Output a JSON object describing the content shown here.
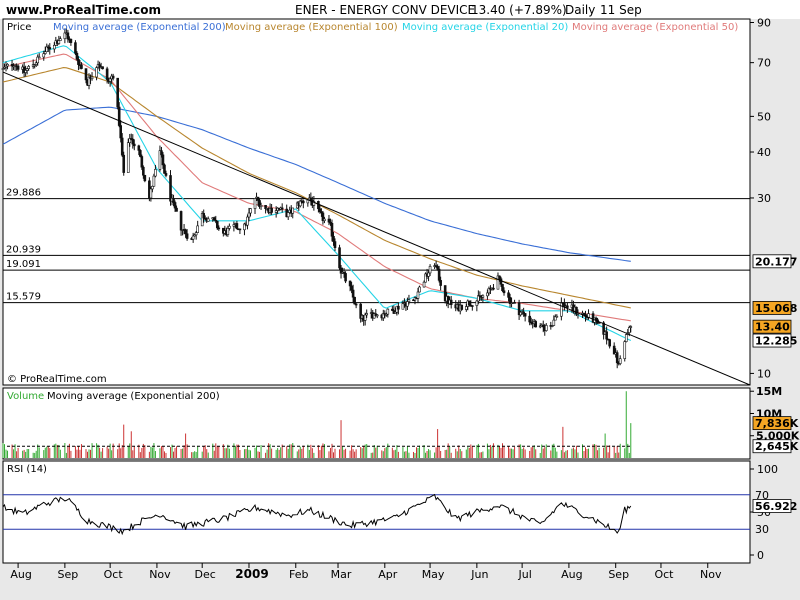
{
  "header": {
    "site": "www.ProRealTime.com",
    "ticker": "ENER - ENERGY CONV DEVICE",
    "quote": "13.40 (+7.89%)",
    "period": "Daily",
    "date": "11 Sep"
  },
  "copyright": "© ProRealTime.com",
  "colors": {
    "price": "#111111",
    "ema200": "#3a6fd6",
    "ema100": "#b8862e",
    "ema20": "#24d4e6",
    "ema50": "#e07a7a",
    "volume_up": "#33aa33",
    "volume_down": "#cc3333",
    "rsi": "#000000",
    "rsi_band": "#2233aa",
    "frame": "#000000",
    "badge_orange": "#f5a623",
    "badge_white": "#ffffff"
  },
  "chart_data": [
    {
      "type": "line",
      "panel": "price",
      "scale": "log",
      "ylim": [
        9.3,
        92
      ],
      "y_ticks": [
        10,
        30,
        40,
        50,
        70,
        90
      ],
      "x_start": "2008-07-22",
      "x_end": "2009-11-29",
      "x_ticks": [
        {
          "date": "2008-08-01",
          "label": "Aug",
          "bold": false
        },
        {
          "date": "2008-09-01",
          "label": "Sep",
          "bold": false
        },
        {
          "date": "2008-10-01",
          "label": "Oct",
          "bold": false
        },
        {
          "date": "2008-11-01",
          "label": "Nov",
          "bold": false
        },
        {
          "date": "2008-12-01",
          "label": "Dec",
          "bold": false
        },
        {
          "date": "2009-01-01",
          "label": "2009",
          "bold": true
        },
        {
          "date": "2009-02-01",
          "label": "Feb",
          "bold": false
        },
        {
          "date": "2009-03-01",
          "label": "Mar",
          "bold": false
        },
        {
          "date": "2009-04-01",
          "label": "Apr",
          "bold": false
        },
        {
          "date": "2009-05-01",
          "label": "May",
          "bold": false
        },
        {
          "date": "2009-06-01",
          "label": "Jun",
          "bold": false
        },
        {
          "date": "2009-07-01",
          "label": "Jul",
          "bold": false
        },
        {
          "date": "2009-08-01",
          "label": "Aug",
          "bold": false
        },
        {
          "date": "2009-09-01",
          "label": "Sep",
          "bold": false
        },
        {
          "date": "2009-10-01",
          "label": "Oct",
          "bold": false
        },
        {
          "date": "2009-11-01",
          "label": "Nov",
          "bold": false
        }
      ],
      "legend": [
        {
          "label": "Price",
          "color": "#000000"
        },
        {
          "label": "Moving average (Exponential 200)",
          "color": "#3a6fd6"
        },
        {
          "label": "Moving average (Exponential 100)",
          "color": "#b8862e"
        },
        {
          "label": "Moving average (Exponential 20)",
          "color": "#24d4e6"
        },
        {
          "label": "Moving average (Exponential 50)",
          "color": "#e07a7a"
        }
      ],
      "horizontal_levels": [
        29.886,
        20.939,
        19.091,
        15.579
      ],
      "trendline": {
        "from": {
          "date": "2008-07-22",
          "value": 66
        },
        "to": {
          "date": "2009-11-29",
          "value": 9.3
        }
      },
      "price_anchors": [
        [
          "2008-07-22",
          67
        ],
        [
          "2008-07-29",
          70
        ],
        [
          "2008-08-05",
          66
        ],
        [
          "2008-08-12",
          70
        ],
        [
          "2008-08-19",
          75
        ],
        [
          "2008-08-26",
          80
        ],
        [
          "2008-09-02",
          84
        ],
        [
          "2008-09-09",
          72
        ],
        [
          "2008-09-16",
          62
        ],
        [
          "2008-09-23",
          70
        ],
        [
          "2008-09-30",
          62
        ],
        [
          "2008-10-03",
          65
        ],
        [
          "2008-10-07",
          48
        ],
        [
          "2008-10-10",
          35
        ],
        [
          "2008-10-14",
          44
        ],
        [
          "2008-10-20",
          40
        ],
        [
          "2008-10-27",
          30
        ],
        [
          "2008-11-03",
          40
        ],
        [
          "2008-11-10",
          30
        ],
        [
          "2008-11-17",
          25
        ],
        [
          "2008-11-24",
          23
        ],
        [
          "2008-12-01",
          27
        ],
        [
          "2008-12-08",
          26
        ],
        [
          "2008-12-15",
          24
        ],
        [
          "2008-12-22",
          25
        ],
        [
          "2008-12-29",
          25
        ],
        [
          "2009-01-05",
          30
        ],
        [
          "2009-01-12",
          28
        ],
        [
          "2009-01-20",
          28
        ],
        [
          "2009-01-27",
          27
        ],
        [
          "2009-02-03",
          29
        ],
        [
          "2009-02-10",
          30
        ],
        [
          "2009-02-17",
          27
        ],
        [
          "2009-02-24",
          25
        ],
        [
          "2009-03-03",
          19
        ],
        [
          "2009-03-09",
          17
        ],
        [
          "2009-03-16",
          14
        ],
        [
          "2009-03-23",
          14.5
        ],
        [
          "2009-03-30",
          14.5
        ],
        [
          "2009-04-06",
          14.8
        ],
        [
          "2009-04-13",
          15.5
        ],
        [
          "2009-04-20",
          15.8
        ],
        [
          "2009-04-27",
          18
        ],
        [
          "2009-05-04",
          20
        ],
        [
          "2009-05-11",
          16
        ],
        [
          "2009-05-18",
          15
        ],
        [
          "2009-05-25",
          15.5
        ],
        [
          "2009-06-01",
          15.8
        ],
        [
          "2009-06-08",
          16.5
        ],
        [
          "2009-06-15",
          18
        ],
        [
          "2009-06-22",
          16
        ],
        [
          "2009-06-29",
          14.8
        ],
        [
          "2009-07-06",
          14
        ],
        [
          "2009-07-13",
          13.2
        ],
        [
          "2009-07-20",
          13.5
        ],
        [
          "2009-07-27",
          15.5
        ],
        [
          "2009-08-03",
          15
        ],
        [
          "2009-08-10",
          14.5
        ],
        [
          "2009-08-17",
          14
        ],
        [
          "2009-08-24",
          13
        ],
        [
          "2009-08-31",
          11.5
        ],
        [
          "2009-09-03",
          10.5
        ],
        [
          "2009-09-07",
          12.4
        ],
        [
          "2009-09-11",
          13.4
        ]
      ],
      "ema_anchors": {
        "ema200": [
          [
            "2008-07-22",
            42
          ],
          [
            "2008-09-01",
            52
          ],
          [
            "2008-10-01",
            53
          ],
          [
            "2008-11-01",
            50
          ],
          [
            "2008-12-01",
            46
          ],
          [
            "2009-01-01",
            41
          ],
          [
            "2009-02-01",
            37
          ],
          [
            "2009-03-01",
            33
          ],
          [
            "2009-04-01",
            29
          ],
          [
            "2009-05-01",
            26
          ],
          [
            "2009-06-01",
            24
          ],
          [
            "2009-07-01",
            22.5
          ],
          [
            "2009-08-01",
            21.3
          ],
          [
            "2009-09-11",
            20.177
          ]
        ],
        "ema100": [
          [
            "2008-07-22",
            62
          ],
          [
            "2008-09-01",
            68
          ],
          [
            "2008-10-01",
            62
          ],
          [
            "2008-11-01",
            50
          ],
          [
            "2008-12-01",
            41
          ],
          [
            "2009-01-01",
            35
          ],
          [
            "2009-02-01",
            31
          ],
          [
            "2009-03-01",
            27
          ],
          [
            "2009-04-01",
            23
          ],
          [
            "2009-05-01",
            20.5
          ],
          [
            "2009-06-01",
            18.5
          ],
          [
            "2009-07-01",
            17.3
          ],
          [
            "2009-08-01",
            16.3
          ],
          [
            "2009-09-11",
            15.068
          ]
        ],
        "ema50": [
          [
            "2008-07-22",
            68
          ],
          [
            "2008-09-01",
            74
          ],
          [
            "2008-10-01",
            63
          ],
          [
            "2008-11-01",
            44
          ],
          [
            "2008-12-01",
            33
          ],
          [
            "2009-01-01",
            29
          ],
          [
            "2009-02-01",
            27.5
          ],
          [
            "2009-03-01",
            24
          ],
          [
            "2009-04-01",
            19.5
          ],
          [
            "2009-05-01",
            17
          ],
          [
            "2009-06-01",
            16
          ],
          [
            "2009-07-01",
            15.5
          ],
          [
            "2009-08-01",
            14.8
          ],
          [
            "2009-09-11",
            13.9
          ]
        ],
        "ema20": [
          [
            "2008-07-22",
            70
          ],
          [
            "2008-09-01",
            78
          ],
          [
            "2008-10-01",
            62
          ],
          [
            "2008-11-01",
            36
          ],
          [
            "2008-12-01",
            26
          ],
          [
            "2009-01-01",
            26
          ],
          [
            "2009-02-01",
            28
          ],
          [
            "2009-03-01",
            21
          ],
          [
            "2009-04-01",
            15
          ],
          [
            "2009-05-01",
            16.8
          ],
          [
            "2009-06-01",
            16
          ],
          [
            "2009-07-01",
            14.8
          ],
          [
            "2009-08-01",
            14.8
          ],
          [
            "2009-09-11",
            12.285
          ]
        ]
      },
      "value_badges": [
        {
          "value": "20.177",
          "price": 20.177,
          "style": "white"
        },
        {
          "value": "15.068",
          "price": 15.068,
          "style": "orange"
        },
        {
          "value": "13.40",
          "price": 13.4,
          "style": "orange"
        },
        {
          "value": "12.285",
          "price": 12.285,
          "style": "white"
        }
      ]
    },
    {
      "type": "bar",
      "panel": "volume",
      "legend": [
        "Volume",
        "Moving average (Exponential 200)"
      ],
      "ylim": [
        0,
        15500000
      ],
      "y_ticks": [
        {
          "value": 15000000,
          "label": "15M"
        },
        {
          "value": 10000000,
          "label": "10M"
        },
        {
          "value": 5000000,
          "label": "5,000K"
        }
      ],
      "avg_line": 2645000,
      "typical_volume": 2500000,
      "spikes": [
        [
          "2008-10-10",
          7500000
        ],
        [
          "2008-10-15",
          6000000
        ],
        [
          "2008-11-20",
          5500000
        ],
        [
          "2009-03-03",
          8500000
        ],
        [
          "2009-05-06",
          6500000
        ],
        [
          "2009-07-28",
          7000000
        ],
        [
          "2009-08-25",
          5500000
        ],
        [
          "2009-09-08",
          15000000
        ],
        [
          "2009-09-11",
          7836000
        ]
      ],
      "value_badges": [
        {
          "value": "7,836K",
          "level": 7836000,
          "style": "orange"
        },
        {
          "value": "2,645K",
          "level": 2645000,
          "style": "white"
        }
      ]
    },
    {
      "type": "line",
      "panel": "rsi",
      "legend": [
        "RSI (14)"
      ],
      "ylim": [
        0,
        100
      ],
      "y_ticks": [
        {
          "value": 100,
          "label": "100"
        },
        {
          "value": 50,
          "label": "50"
        },
        {
          "value": 0,
          "label": "0"
        }
      ],
      "bands": [
        {
          "value": 70,
          "label": "70"
        },
        {
          "value": 30,
          "label": "30"
        }
      ],
      "rsi_anchors": [
        [
          "2008-07-22",
          55
        ],
        [
          "2008-08-05",
          48
        ],
        [
          "2008-08-19",
          60
        ],
        [
          "2008-09-02",
          66
        ],
        [
          "2008-09-16",
          40
        ],
        [
          "2008-10-10",
          28
        ],
        [
          "2008-10-20",
          38
        ],
        [
          "2008-11-03",
          48
        ],
        [
          "2008-11-20",
          33
        ],
        [
          "2008-12-15",
          42
        ],
        [
          "2009-01-06",
          55
        ],
        [
          "2009-01-27",
          46
        ],
        [
          "2009-02-10",
          52
        ],
        [
          "2009-03-09",
          34
        ],
        [
          "2009-04-06",
          42
        ],
        [
          "2009-05-04",
          68
        ],
        [
          "2009-05-18",
          42
        ],
        [
          "2009-06-15",
          58
        ],
        [
          "2009-07-13",
          35
        ],
        [
          "2009-07-27",
          60
        ],
        [
          "2009-08-17",
          42
        ],
        [
          "2009-09-03",
          26
        ],
        [
          "2009-09-07",
          52
        ],
        [
          "2009-09-11",
          56.922
        ]
      ],
      "value_badges": [
        {
          "value": "56.922",
          "level": 56.922,
          "style": "white"
        }
      ]
    }
  ]
}
